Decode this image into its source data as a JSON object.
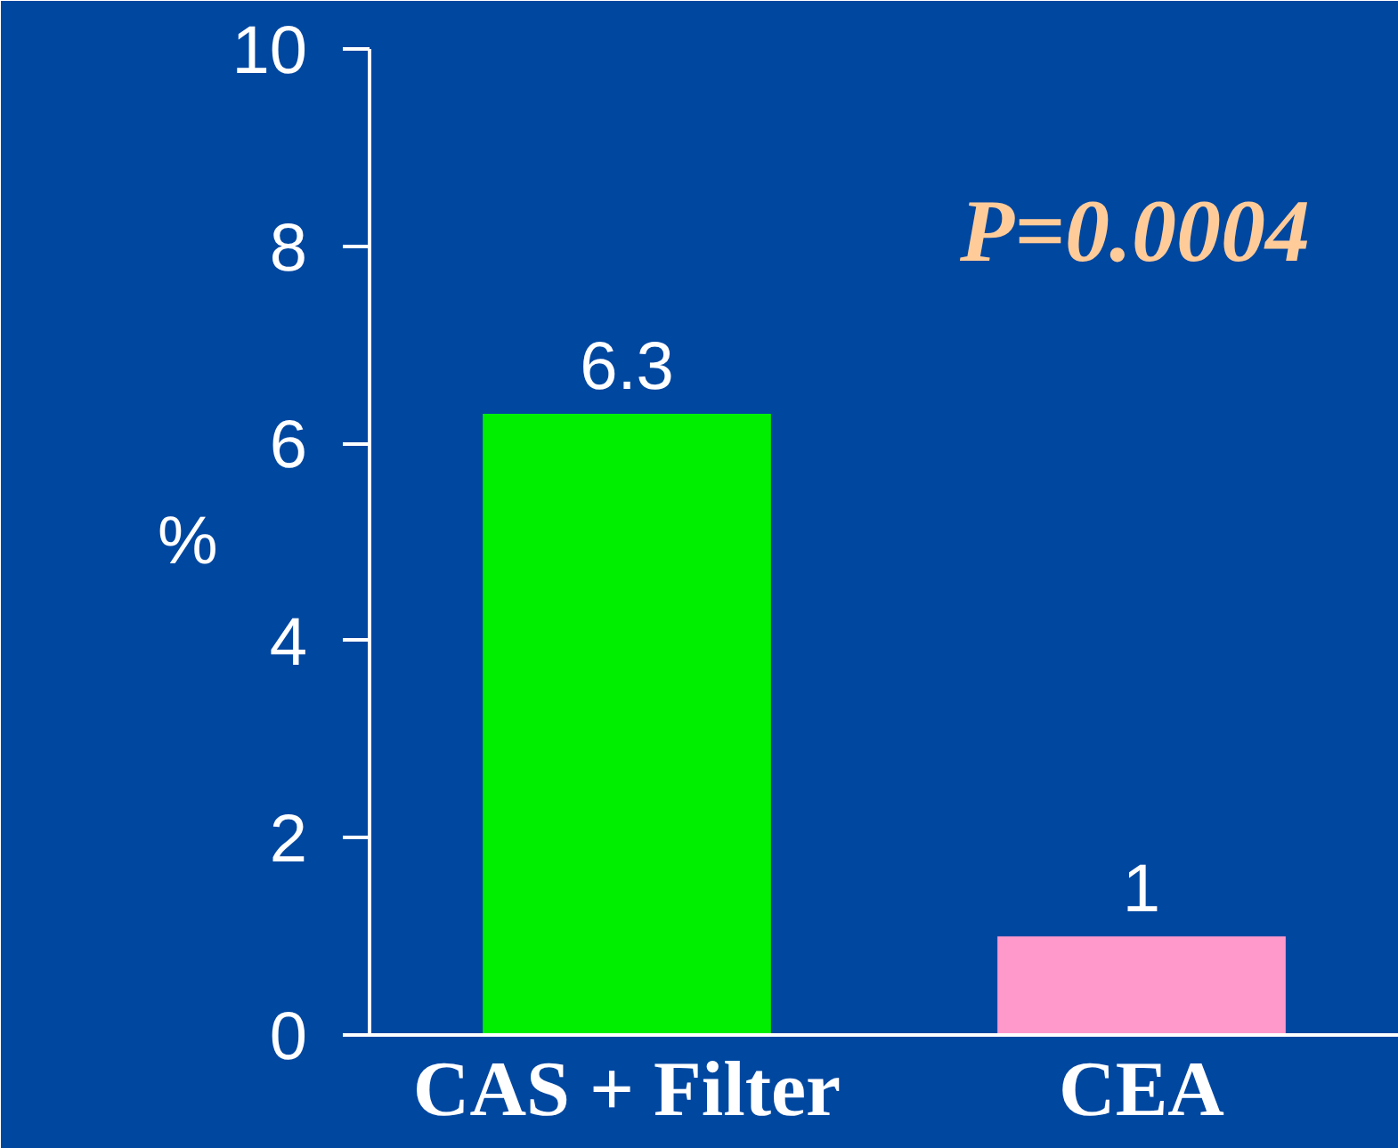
{
  "chart_data": {
    "type": "bar",
    "categories": [
      "CAS + Filter",
      "CEA"
    ],
    "values": [
      6.3,
      1
    ],
    "colors": [
      "#00ee00",
      "#ff99cc"
    ],
    "ylabel": "%",
    "ylim": [
      0,
      10
    ],
    "yticks": [
      0,
      2,
      4,
      6,
      8,
      10
    ],
    "data_labels": true,
    "grid": false,
    "annotations": [
      "P=0.0004"
    ]
  }
}
